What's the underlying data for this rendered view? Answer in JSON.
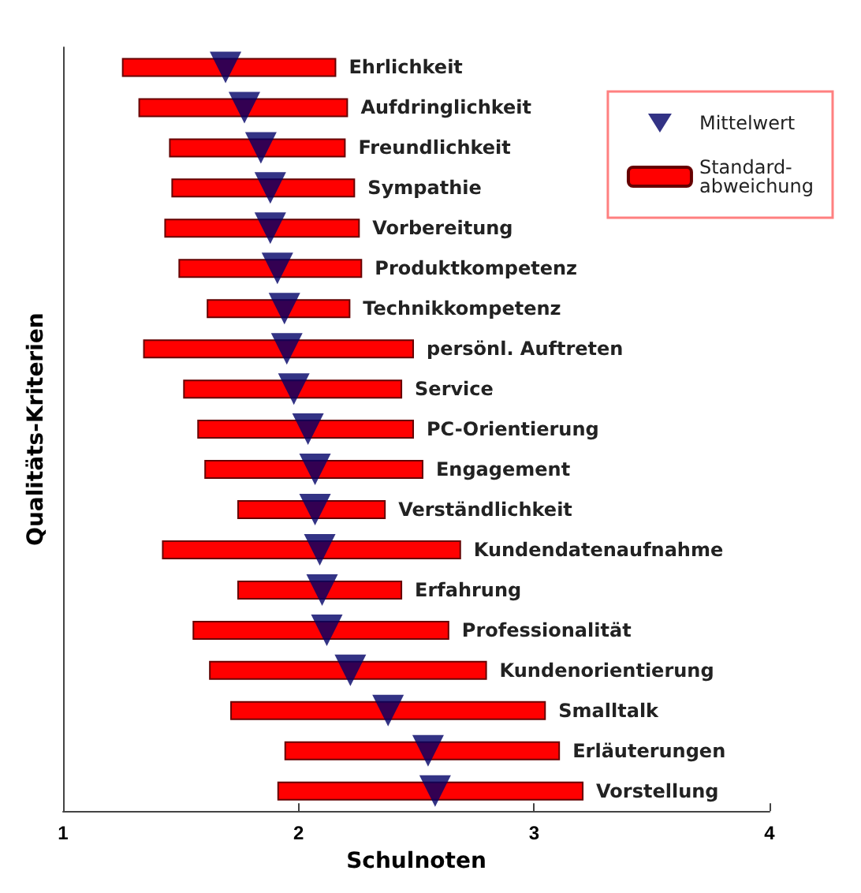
{
  "chart_data": {
    "type": "bar",
    "orientation": "horizontal",
    "xlabel": "Schulnoten",
    "ylabel": "Qualitäts-Kriterien",
    "categories": [
      "Ehrlichkeit",
      "Aufdringlichkeit",
      "Freundlichkeit",
      "Sympathie",
      "Vorbereitung",
      "Produktkompetenz",
      "Technikkompetenz",
      "persönl. Auftreten",
      "Service",
      "PC-Orientierung",
      "Engagement",
      "Verständlichkeit",
      "Kundendatenaufnahme",
      "Erfahrung",
      "Professionalität",
      "Kundenorientierung",
      "Smalltalk",
      "Erläuterungen",
      "Vorstellung"
    ],
    "series": [
      {
        "name": "Standard-\nabweichung",
        "color": "#ff0000",
        "base": [
          1.25,
          1.32,
          1.45,
          1.46,
          1.43,
          1.49,
          1.61,
          1.34,
          1.51,
          1.57,
          1.6,
          1.74,
          1.42,
          1.74,
          1.55,
          1.62,
          1.71,
          1.94,
          1.91
        ],
        "values": [
          0.91,
          0.89,
          0.75,
          0.78,
          0.83,
          0.78,
          0.61,
          1.15,
          0.93,
          0.92,
          0.93,
          0.63,
          1.27,
          0.7,
          1.09,
          1.18,
          1.34,
          1.17,
          1.3
        ]
      },
      {
        "name": "Mittelwert",
        "type": "scatter",
        "color": "#000066",
        "marker": "triangle",
        "values": [
          1.69,
          1.77,
          1.84,
          1.88,
          1.88,
          1.91,
          1.94,
          1.95,
          1.98,
          2.04,
          2.07,
          2.07,
          2.09,
          2.1,
          2.12,
          2.22,
          2.38,
          2.55,
          2.58
        ]
      }
    ],
    "xlim": [
      1,
      4
    ],
    "xticks": [
      1,
      2,
      3,
      4
    ],
    "grid": false,
    "legend": "top right",
    "tick_labels": "x"
  }
}
